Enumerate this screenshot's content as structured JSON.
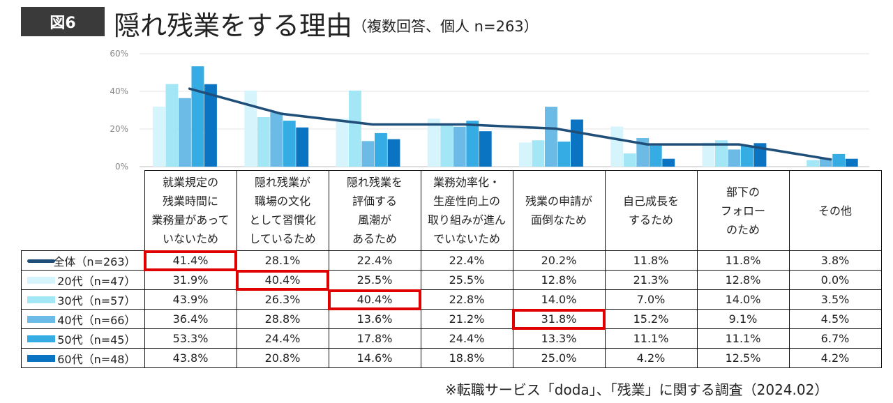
{
  "header": {
    "figure_label": "図6",
    "title": "隠れ残業をする理由",
    "subtitle": "（複数回答、個人 n=263）"
  },
  "chart_data": {
    "type": "bar",
    "title": "隠れ残業をする理由",
    "yticks": [
      "60%",
      "40%",
      "20%",
      "0%"
    ],
    "ylim": [
      0,
      60
    ],
    "categories": [
      "就業規定の\n残業時間に\n業務量があって\nいないため",
      "隠れ残業が\n職場の文化\nとして習慣化\nしているため",
      "隠れ残業を\n評価する\n風潮が\nあるため",
      "業務効率化・\n生産性向上の\n取り組みが進ん\nでいないため",
      "残業の申請が\n面倒なため",
      "自己成長を\nするため",
      "部下の\nフォロー\nのため",
      "その他"
    ],
    "line_series": {
      "name": "全体（n=263）",
      "color": "#1f4e79",
      "values": [
        41.4,
        28.1,
        22.4,
        22.4,
        20.2,
        11.8,
        11.8,
        3.8
      ],
      "labels": [
        "41.4%",
        "28.1%",
        "22.4%",
        "22.4%",
        "20.2%",
        "11.8%",
        "11.8%",
        "3.8%"
      ]
    },
    "series": [
      {
        "name": "20代（n=47）",
        "color": "#d5f4fb",
        "values": [
          31.9,
          40.4,
          25.5,
          25.5,
          12.8,
          21.3,
          12.8,
          0.0
        ],
        "labels": [
          "31.9%",
          "40.4%",
          "25.5%",
          "25.5%",
          "12.8%",
          "21.3%",
          "12.8%",
          "0.0%"
        ]
      },
      {
        "name": "30代（n=57）",
        "color": "#a3e6f6",
        "values": [
          43.9,
          26.3,
          40.4,
          22.8,
          14.0,
          7.0,
          14.0,
          3.5
        ],
        "labels": [
          "43.9%",
          "26.3%",
          "40.4%",
          "22.8%",
          "14.0%",
          "7.0%",
          "14.0%",
          "3.5%"
        ]
      },
      {
        "name": "40代（n=66）",
        "color": "#6bbbe6",
        "values": [
          36.4,
          28.8,
          13.6,
          21.2,
          31.8,
          15.2,
          9.1,
          4.5
        ],
        "labels": [
          "36.4%",
          "28.8%",
          "13.6%",
          "21.2%",
          "31.8%",
          "15.2%",
          "9.1%",
          "4.5%"
        ]
      },
      {
        "name": "50代（n=45）",
        "color": "#36ace4",
        "values": [
          53.3,
          24.4,
          17.8,
          24.4,
          13.3,
          11.1,
          11.1,
          6.7
        ],
        "labels": [
          "53.3%",
          "24.4%",
          "17.8%",
          "24.4%",
          "13.3%",
          "11.1%",
          "11.1%",
          "6.7%"
        ]
      },
      {
        "name": "60代（n=48）",
        "color": "#0a74c2",
        "values": [
          43.8,
          20.8,
          14.6,
          18.8,
          25.0,
          4.2,
          12.5,
          4.2
        ],
        "labels": [
          "43.8%",
          "20.8%",
          "14.6%",
          "18.8%",
          "25.0%",
          "4.2%",
          "12.5%",
          "4.2%"
        ]
      }
    ],
    "highlight_color": "#e00000",
    "highlights": [
      [
        0,
        0
      ],
      [
        1,
        1
      ],
      [
        2,
        2
      ],
      [
        3,
        4
      ]
    ]
  },
  "footnote": "※転職サービス「doda」、「残業」に関する調査（2024.02）"
}
